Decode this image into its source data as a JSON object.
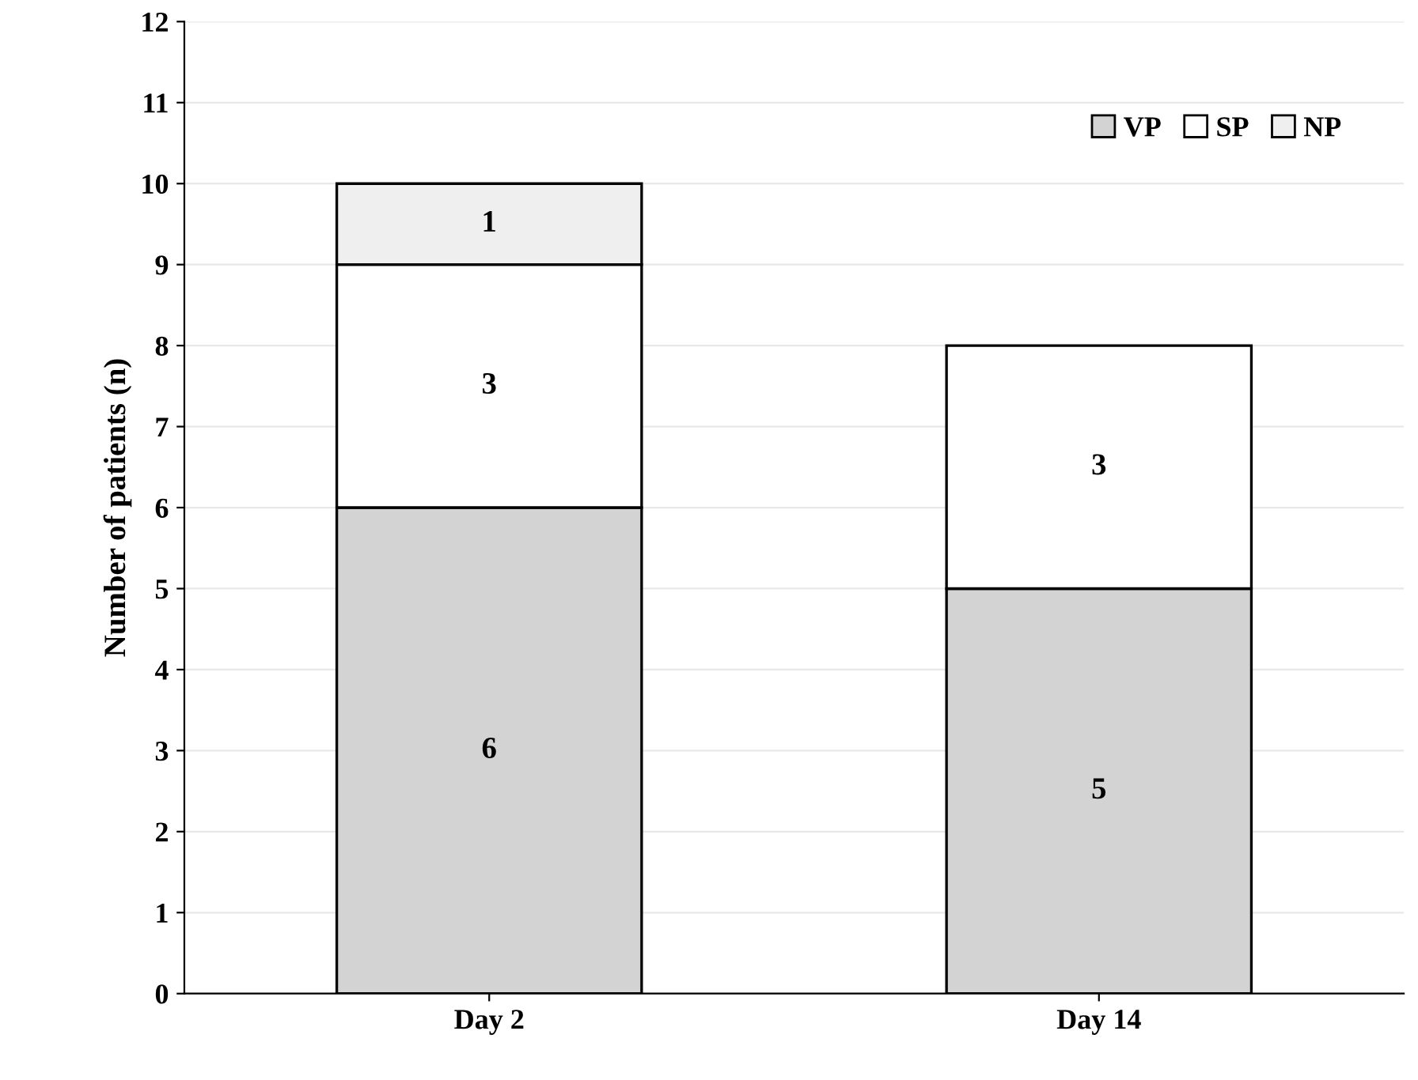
{
  "chart_data": {
    "type": "bar",
    "stacked": true,
    "ylabel": "Number of patients (n)",
    "categories": [
      "Day 2",
      "Day 14"
    ],
    "series": [
      {
        "name": "VP",
        "color": "#d3d3d3",
        "values": [
          6,
          5
        ]
      },
      {
        "name": "SP",
        "color": "#ffffff",
        "values": [
          3,
          3
        ]
      },
      {
        "name": "NP",
        "color": "#efefef",
        "values": [
          1,
          null
        ]
      }
    ],
    "ylim": [
      0,
      12
    ],
    "yticks": [
      0,
      1,
      2,
      3,
      4,
      5,
      6,
      7,
      8,
      9,
      10,
      11,
      12
    ],
    "grid": "y",
    "legend": "top right",
    "data_labels": true
  }
}
